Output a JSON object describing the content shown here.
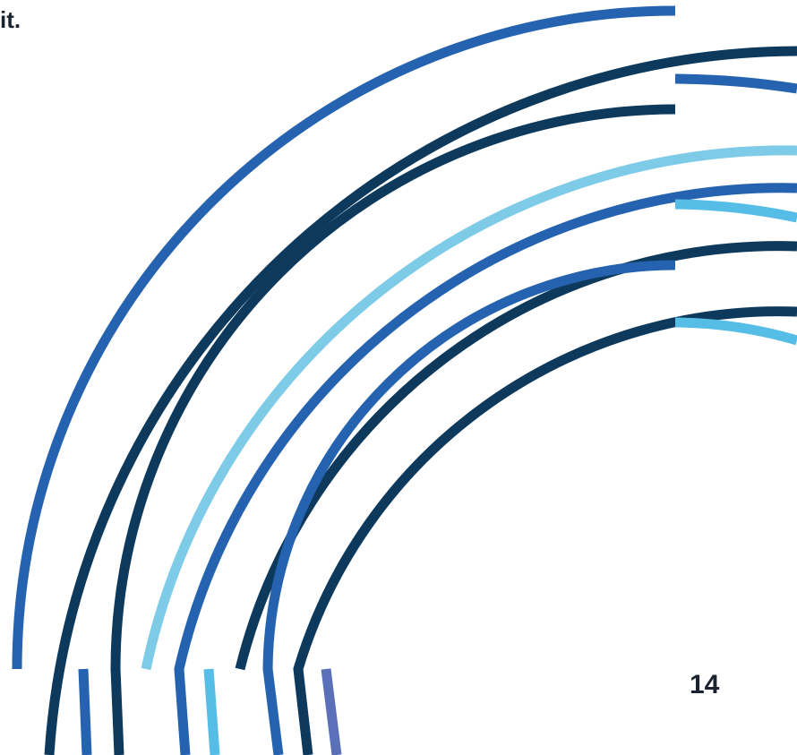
{
  "page": {
    "text_fragment": "it.",
    "page_number": "14"
  },
  "palette": {
    "mid_blue": "#2563b0",
    "dark_navy": "#0d3a5c",
    "light_blue": "#7ecbe8",
    "cyan": "#56bde6",
    "violet": "#5a70b8"
  }
}
